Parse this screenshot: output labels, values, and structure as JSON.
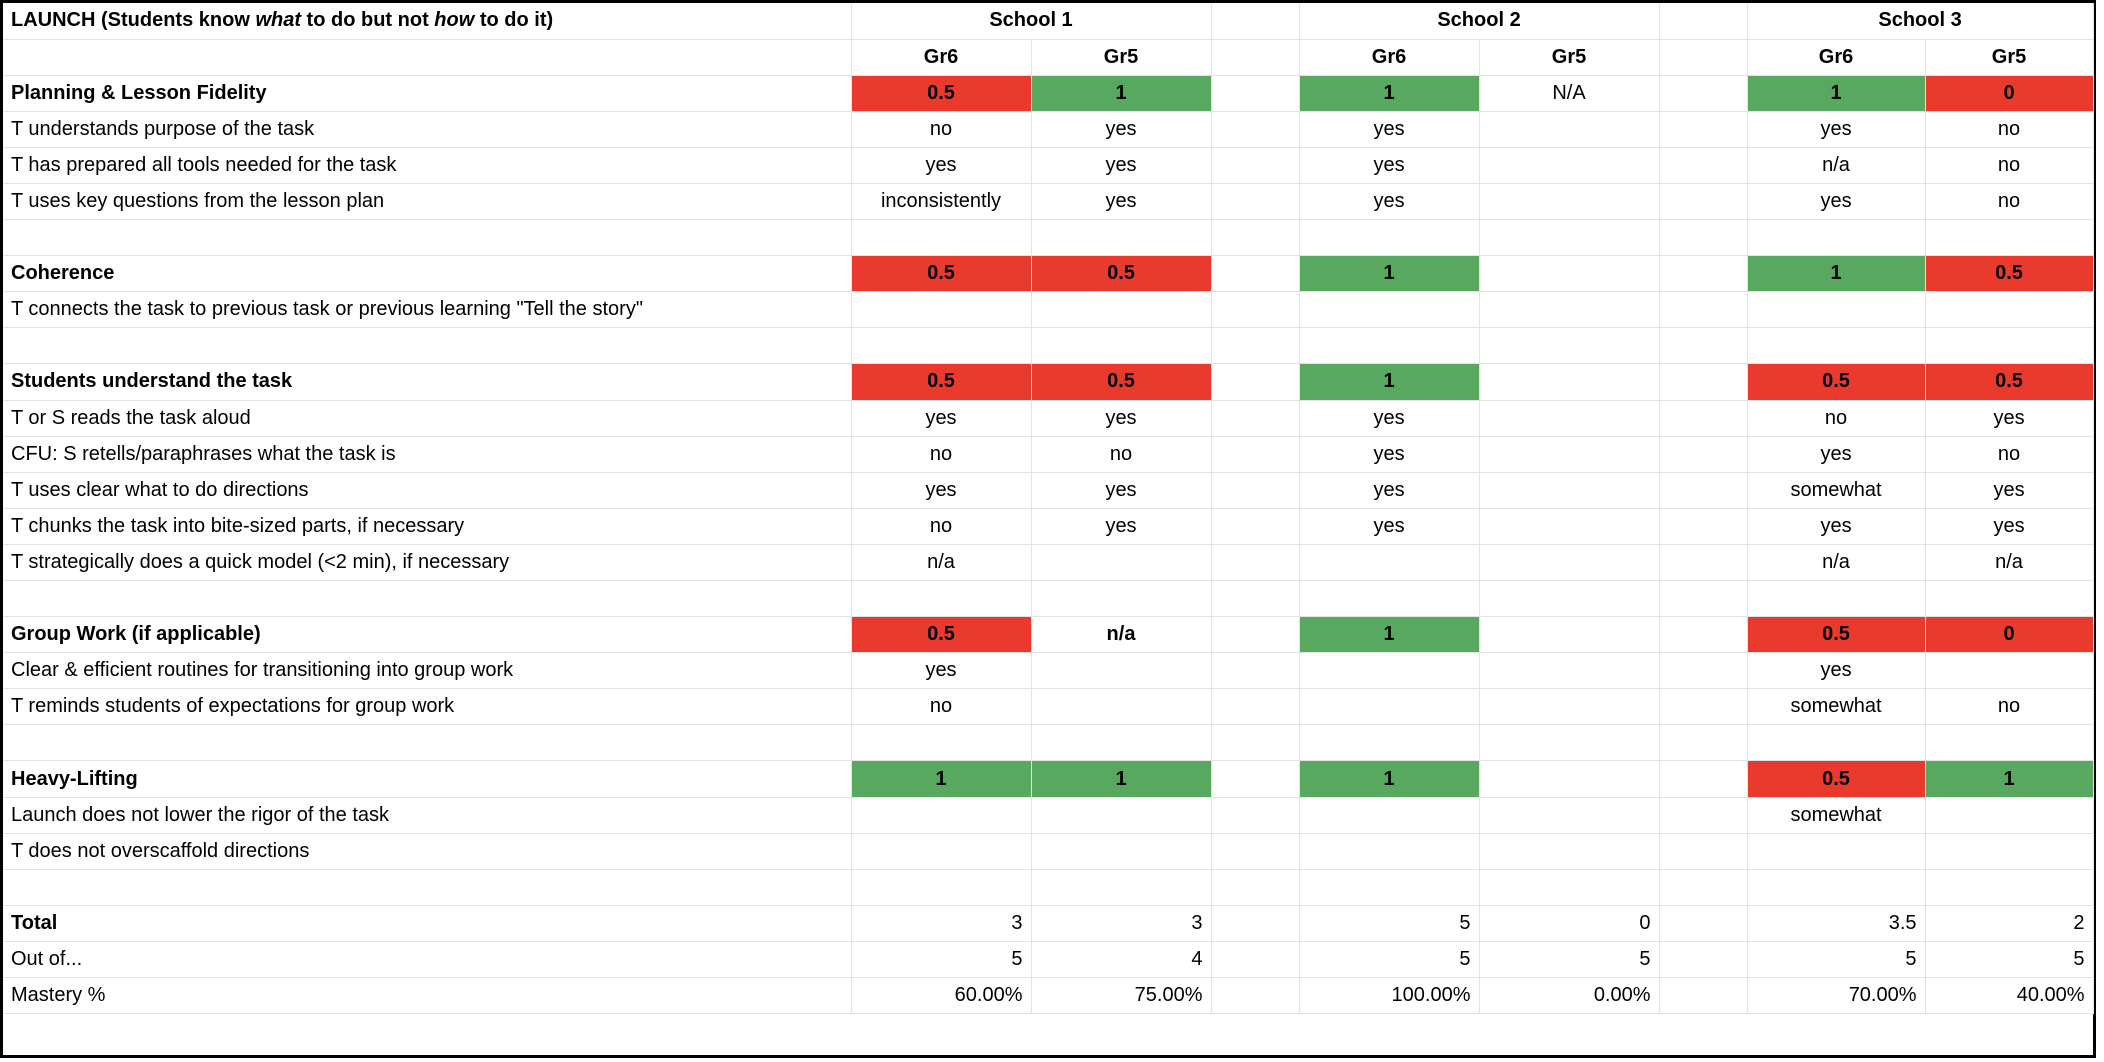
{
  "colors": {
    "low_score": "#ea3a2d",
    "high_score": "#58a85f"
  },
  "header": {
    "title_prefix": "LAUNCH (Students know ",
    "title_em1": "what",
    "title_mid": " to do but not ",
    "title_em2": "how",
    "title_suffix": " to do it)",
    "schools": [
      "School 1",
      "School 2",
      "School 3"
    ],
    "grades": [
      "Gr6",
      "Gr5",
      "Gr6",
      "Gr5",
      "Gr6",
      "Gr5"
    ]
  },
  "rows": [
    {
      "label": "Planning & Lesson Fidelity",
      "section": true,
      "cells": [
        {
          "v": "0.5",
          "t": "red"
        },
        {
          "v": "1",
          "t": "green"
        },
        {
          "v": "1",
          "t": "green"
        },
        {
          "v": "N/A",
          "t": "plain"
        },
        {
          "v": "1",
          "t": "green"
        },
        {
          "v": "0",
          "t": "red"
        }
      ]
    },
    {
      "label": "T understands purpose of the task",
      "cells": [
        {
          "v": "no"
        },
        {
          "v": "yes"
        },
        {
          "v": "yes"
        },
        {
          "v": ""
        },
        {
          "v": "yes"
        },
        {
          "v": "no"
        }
      ]
    },
    {
      "label": "T has prepared all tools needed for the task",
      "cells": [
        {
          "v": "yes"
        },
        {
          "v": "yes"
        },
        {
          "v": "yes"
        },
        {
          "v": ""
        },
        {
          "v": "n/a"
        },
        {
          "v": "no"
        }
      ]
    },
    {
      "label": "T uses key questions from the lesson plan",
      "cells": [
        {
          "v": "inconsistently"
        },
        {
          "v": "yes"
        },
        {
          "v": "yes"
        },
        {
          "v": ""
        },
        {
          "v": "yes"
        },
        {
          "v": "no"
        }
      ]
    },
    {
      "label": "",
      "blank": true,
      "cells": [
        {
          "v": ""
        },
        {
          "v": ""
        },
        {
          "v": ""
        },
        {
          "v": ""
        },
        {
          "v": ""
        },
        {
          "v": ""
        }
      ]
    },
    {
      "label": "Coherence",
      "section": true,
      "cells": [
        {
          "v": "0.5",
          "t": "red"
        },
        {
          "v": "0.5",
          "t": "red"
        },
        {
          "v": "1",
          "t": "green"
        },
        {
          "v": ""
        },
        {
          "v": "1",
          "t": "green"
        },
        {
          "v": "0.5",
          "t": "red"
        }
      ]
    },
    {
      "label": "T connects the task to previous task or previous learning \"Tell the story\"",
      "cells": [
        {
          "v": ""
        },
        {
          "v": ""
        },
        {
          "v": ""
        },
        {
          "v": ""
        },
        {
          "v": ""
        },
        {
          "v": ""
        }
      ]
    },
    {
      "label": "",
      "blank": true,
      "cells": [
        {
          "v": ""
        },
        {
          "v": ""
        },
        {
          "v": ""
        },
        {
          "v": ""
        },
        {
          "v": ""
        },
        {
          "v": ""
        }
      ]
    },
    {
      "label": "Students understand the task",
      "section": true,
      "cells": [
        {
          "v": "0.5",
          "t": "red"
        },
        {
          "v": "0.5",
          "t": "red"
        },
        {
          "v": "1",
          "t": "green"
        },
        {
          "v": ""
        },
        {
          "v": "0.5",
          "t": "red"
        },
        {
          "v": "0.5",
          "t": "red"
        }
      ]
    },
    {
      "label": "T or S reads the task aloud",
      "cells": [
        {
          "v": "yes"
        },
        {
          "v": "yes"
        },
        {
          "v": "yes"
        },
        {
          "v": ""
        },
        {
          "v": "no"
        },
        {
          "v": "yes"
        }
      ]
    },
    {
      "label": "CFU: S retells/paraphrases what the task is",
      "cells": [
        {
          "v": "no"
        },
        {
          "v": "no"
        },
        {
          "v": "yes"
        },
        {
          "v": ""
        },
        {
          "v": "yes"
        },
        {
          "v": "no"
        }
      ]
    },
    {
      "label": "T uses clear what to do directions",
      "cells": [
        {
          "v": "yes"
        },
        {
          "v": "yes"
        },
        {
          "v": "yes"
        },
        {
          "v": ""
        },
        {
          "v": "somewhat"
        },
        {
          "v": "yes"
        }
      ]
    },
    {
      "label": "T chunks the task into bite-sized parts, if necessary",
      "cells": [
        {
          "v": "no"
        },
        {
          "v": "yes"
        },
        {
          "v": "yes"
        },
        {
          "v": ""
        },
        {
          "v": "yes"
        },
        {
          "v": "yes"
        }
      ]
    },
    {
      "label": "T strategically does a quick model (<2 min), if necessary",
      "cells": [
        {
          "v": "n/a"
        },
        {
          "v": ""
        },
        {
          "v": ""
        },
        {
          "v": ""
        },
        {
          "v": "n/a"
        },
        {
          "v": "n/a"
        }
      ]
    },
    {
      "label": "",
      "blank": true,
      "cells": [
        {
          "v": ""
        },
        {
          "v": ""
        },
        {
          "v": ""
        },
        {
          "v": ""
        },
        {
          "v": ""
        },
        {
          "v": ""
        }
      ]
    },
    {
      "label": "Group Work (if applicable)",
      "section": true,
      "cells": [
        {
          "v": "0.5",
          "t": "red"
        },
        {
          "v": "n/a",
          "t": "bold"
        },
        {
          "v": "1",
          "t": "green"
        },
        {
          "v": ""
        },
        {
          "v": "0.5",
          "t": "red"
        },
        {
          "v": "0",
          "t": "red"
        }
      ]
    },
    {
      "label": "Clear & efficient routines for transitioning into group work",
      "cells": [
        {
          "v": "yes"
        },
        {
          "v": ""
        },
        {
          "v": ""
        },
        {
          "v": ""
        },
        {
          "v": "yes"
        },
        {
          "v": ""
        }
      ]
    },
    {
      "label": "T reminds students of expectations for group work",
      "cells": [
        {
          "v": "no"
        },
        {
          "v": ""
        },
        {
          "v": ""
        },
        {
          "v": ""
        },
        {
          "v": "somewhat"
        },
        {
          "v": "no"
        }
      ]
    },
    {
      "label": "",
      "blank": true,
      "cells": [
        {
          "v": ""
        },
        {
          "v": ""
        },
        {
          "v": ""
        },
        {
          "v": ""
        },
        {
          "v": ""
        },
        {
          "v": ""
        }
      ]
    },
    {
      "label": "Heavy-Lifting",
      "section": true,
      "cells": [
        {
          "v": "1",
          "t": "green"
        },
        {
          "v": "1",
          "t": "green"
        },
        {
          "v": "1",
          "t": "green"
        },
        {
          "v": ""
        },
        {
          "v": "0.5",
          "t": "red"
        },
        {
          "v": "1",
          "t": "green"
        }
      ]
    },
    {
      "label": "Launch does not lower the rigor of the task",
      "cells": [
        {
          "v": ""
        },
        {
          "v": ""
        },
        {
          "v": ""
        },
        {
          "v": ""
        },
        {
          "v": "somewhat"
        },
        {
          "v": ""
        }
      ]
    },
    {
      "label": "T does not overscaffold directions",
      "cells": [
        {
          "v": ""
        },
        {
          "v": ""
        },
        {
          "v": ""
        },
        {
          "v": ""
        },
        {
          "v": ""
        },
        {
          "v": ""
        }
      ]
    },
    {
      "label": "",
      "blank": true,
      "cells": [
        {
          "v": ""
        },
        {
          "v": ""
        },
        {
          "v": ""
        },
        {
          "v": ""
        },
        {
          "v": ""
        },
        {
          "v": ""
        }
      ]
    },
    {
      "label": "Total",
      "section": true,
      "align": "r",
      "cells": [
        {
          "v": "3"
        },
        {
          "v": "3"
        },
        {
          "v": "5"
        },
        {
          "v": "0"
        },
        {
          "v": "3.5"
        },
        {
          "v": "2"
        }
      ]
    },
    {
      "label": "Out of...",
      "align": "r",
      "cells": [
        {
          "v": "5"
        },
        {
          "v": "4"
        },
        {
          "v": "5"
        },
        {
          "v": "5"
        },
        {
          "v": "5"
        },
        {
          "v": "5"
        }
      ]
    },
    {
      "label": "Mastery %",
      "align": "r",
      "cells": [
        {
          "v": "60.00%"
        },
        {
          "v": "75.00%"
        },
        {
          "v": "100.00%"
        },
        {
          "v": "0.00%"
        },
        {
          "v": "70.00%"
        },
        {
          "v": "40.00%"
        }
      ]
    }
  ]
}
